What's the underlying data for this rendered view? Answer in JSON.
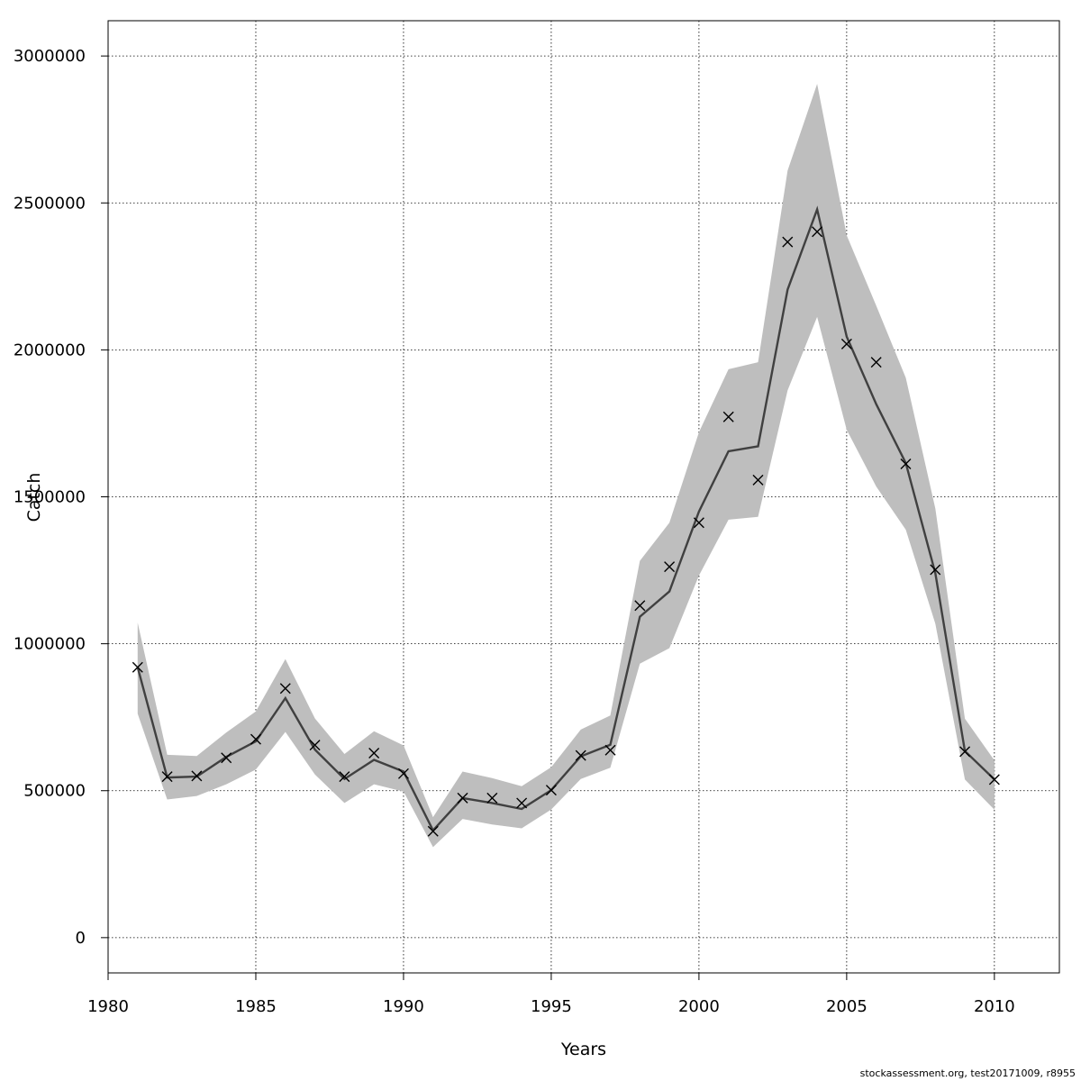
{
  "chart_data": {
    "type": "line",
    "title": "",
    "xlabel": "Years",
    "ylabel": "Catch",
    "xlim": [
      1980,
      2012.2
    ],
    "ylim": [
      -120000,
      3120000
    ],
    "x_ticks": [
      1980,
      1985,
      1990,
      1995,
      2000,
      2005,
      2010
    ],
    "y_ticks": [
      0,
      500000,
      1000000,
      1500000,
      2000000,
      2500000,
      3000000
    ],
    "grid": true,
    "x": [
      1981,
      1982,
      1983,
      1984,
      1985,
      1986,
      1987,
      1988,
      1989,
      1990,
      1991,
      1992,
      1993,
      1994,
      1995,
      1996,
      1997,
      1998,
      1999,
      2000,
      2001,
      2002,
      2003,
      2004,
      2005,
      2006,
      2007,
      2008,
      2009,
      2010
    ],
    "series": [
      {
        "kind": "line",
        "color": "#404040",
        "values": [
          920000,
          545000,
          548000,
          615000,
          668000,
          815000,
          640000,
          540000,
          605000,
          565000,
          365000,
          475000,
          458000,
          438000,
          502000,
          617000,
          656000,
          1092000,
          1178000,
          1450000,
          1655000,
          1672000,
          2205000,
          2478000,
          2045000,
          1815000,
          1615000,
          1240000,
          635000,
          538000
        ]
      },
      {
        "kind": "band",
        "color": "#bebebe",
        "lower": [
          762000,
          470000,
          482000,
          522000,
          572000,
          700000,
          555000,
          458000,
          522000,
          497000,
          308000,
          404000,
          385000,
          372000,
          436000,
          540000,
          578000,
          932000,
          985000,
          1232000,
          1422000,
          1432000,
          1862000,
          2112000,
          1728000,
          1535000,
          1388000,
          1068000,
          538000,
          435000
        ],
        "upper": [
          1072000,
          622000,
          618000,
          698000,
          770000,
          948000,
          746000,
          625000,
          702000,
          654000,
          410000,
          565000,
          543000,
          515000,
          580000,
          708000,
          756000,
          1282000,
          1412000,
          1720000,
          1934000,
          1958000,
          2610000,
          2905000,
          2390000,
          2150000,
          1905000,
          1460000,
          745000,
          603000
        ]
      },
      {
        "kind": "points",
        "marker": "x",
        "color": "#000000",
        "values": [
          920000,
          548000,
          550000,
          612000,
          675000,
          848000,
          655000,
          548000,
          628000,
          558000,
          362000,
          475000,
          475000,
          458000,
          502000,
          620000,
          638000,
          1130000,
          1262000,
          1412000,
          1772000,
          1557000,
          2367000,
          2402000,
          2020000,
          1958000,
          1612000,
          1252000,
          633000,
          538000
        ]
      }
    ]
  },
  "footer": "stockassessment.org, test20171009, r8955"
}
